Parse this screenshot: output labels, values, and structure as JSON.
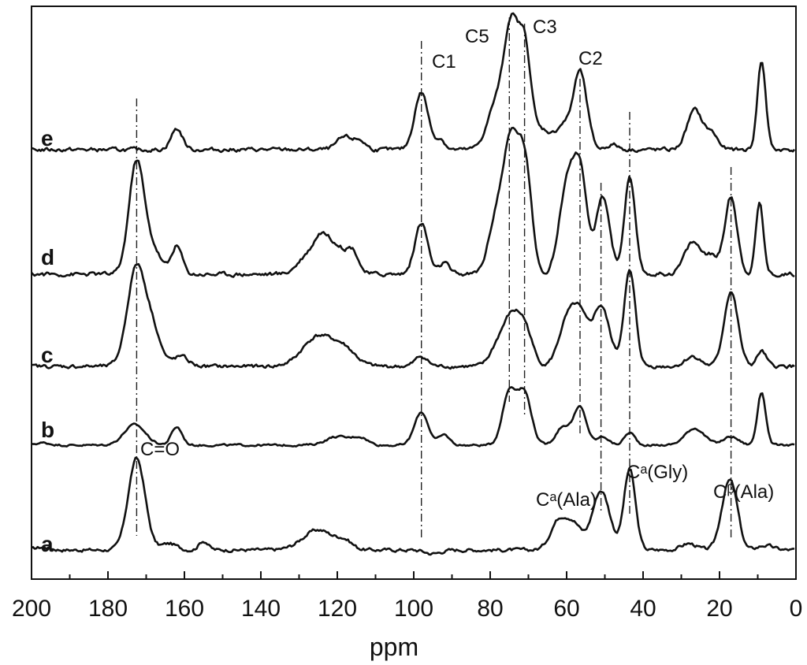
{
  "chart_data": {
    "type": "line",
    "title": "",
    "xlabel": "ppm",
    "ylabel": "",
    "xlim": [
      200,
      0
    ],
    "x_reversed": true,
    "xticks": [
      200,
      180,
      160,
      140,
      120,
      100,
      80,
      60,
      40,
      20,
      0
    ],
    "grid": false,
    "baseline_shape": "smooth",
    "series": [
      {
        "name": "a",
        "peaks": [
          [
            197,
            0.03,
            2
          ],
          [
            172.5,
            1.0,
            2.2
          ],
          [
            164,
            0.07,
            2
          ],
          [
            155,
            0.1,
            1.2
          ],
          [
            125,
            0.22,
            4
          ],
          [
            118,
            0.08,
            2
          ],
          [
            95,
            -0.04,
            2
          ],
          [
            62,
            0.32,
            2.2
          ],
          [
            58,
            0.25,
            2
          ],
          [
            51,
            0.65,
            2.3
          ],
          [
            43.5,
            0.88,
            1.5
          ],
          [
            28,
            0.07,
            2
          ],
          [
            18,
            0.6,
            1.8
          ],
          [
            16,
            0.3,
            1.5
          ],
          [
            8,
            0.05,
            2
          ]
        ]
      },
      {
        "name": "b",
        "peaks": [
          [
            197,
            0.04,
            2
          ],
          [
            173,
            0.36,
            2.8
          ],
          [
            162,
            0.32,
            1.4
          ],
          [
            120,
            0.15,
            3
          ],
          [
            114,
            0.13,
            2
          ],
          [
            98,
            0.58,
            1.8
          ],
          [
            92,
            0.18,
            1.4
          ],
          [
            75,
            0.93,
            1.8
          ],
          [
            71,
            0.9,
            1.8
          ],
          [
            61,
            0.32,
            1.8
          ],
          [
            56.5,
            0.66,
            1.7
          ],
          [
            50.5,
            0.15,
            1.5
          ],
          [
            43.5,
            0.22,
            1.4
          ],
          [
            26.5,
            0.3,
            2.5
          ],
          [
            17,
            0.15,
            2
          ],
          [
            9,
            0.93,
            1.1
          ]
        ]
      },
      {
        "name": "c",
        "peaks": [
          [
            172.5,
            1.0,
            2.4
          ],
          [
            168,
            0.3,
            2
          ],
          [
            161,
            0.1,
            2
          ],
          [
            125,
            0.3,
            4
          ],
          [
            118,
            0.15,
            3
          ],
          [
            98,
            0.1,
            1.6
          ],
          [
            78,
            0.2,
            2
          ],
          [
            74.5,
            0.42,
            2
          ],
          [
            71,
            0.38,
            2
          ],
          [
            60,
            0.42,
            2.2
          ],
          [
            56.5,
            0.45,
            2
          ],
          [
            51,
            0.6,
            2.2
          ],
          [
            43.5,
            0.95,
            1.5
          ],
          [
            27,
            0.1,
            2
          ],
          [
            17,
            0.75,
            1.8
          ],
          [
            9,
            0.15,
            1.2
          ]
        ]
      },
      {
        "name": "d",
        "peaks": [
          [
            172.5,
            1.0,
            2.0
          ],
          [
            168,
            0.2,
            2
          ],
          [
            162,
            0.25,
            1.4
          ],
          [
            128,
            0.15,
            2.5
          ],
          [
            124,
            0.3,
            2
          ],
          [
            120,
            0.22,
            2
          ],
          [
            116,
            0.2,
            1.6
          ],
          [
            98,
            0.45,
            1.7
          ],
          [
            92,
            0.1,
            1.2
          ],
          [
            78,
            0.55,
            2.2
          ],
          [
            74.5,
            0.97,
            1.8
          ],
          [
            71,
            0.98,
            1.8
          ],
          [
            60,
            0.75,
            2
          ],
          [
            56.5,
            0.85,
            1.8
          ],
          [
            50.5,
            0.68,
            1.8
          ],
          [
            43.5,
            0.85,
            1.4
          ],
          [
            27,
            0.28,
            2.2
          ],
          [
            22,
            0.15,
            1.8
          ],
          [
            17,
            0.68,
            1.6
          ],
          [
            9.5,
            0.63,
            1.0
          ]
        ]
      },
      {
        "name": "e",
        "peaks": [
          [
            162,
            0.2,
            1.5
          ],
          [
            118,
            0.12,
            2
          ],
          [
            114,
            0.08,
            1.5
          ],
          [
            98,
            0.55,
            1.8
          ],
          [
            93,
            0.1,
            1.2
          ],
          [
            78,
            0.48,
            2.5
          ],
          [
            74.5,
            1.0,
            1.7
          ],
          [
            71,
            1.0,
            1.7
          ],
          [
            66,
            0.18,
            2
          ],
          [
            61,
            0.22,
            1.8
          ],
          [
            56.5,
            0.75,
            1.8
          ],
          [
            48,
            0.05,
            1.5
          ],
          [
            26.5,
            0.38,
            2
          ],
          [
            22,
            0.15,
            1.6
          ],
          [
            9,
            0.85,
            1.1
          ]
        ]
      }
    ],
    "reference_lines_ppm": [
      172.5,
      98,
      75,
      71,
      56.5,
      51,
      43.5,
      17
    ],
    "annotations": [
      {
        "text": "C1",
        "x": 98
      },
      {
        "text": "C5",
        "x": 75
      },
      {
        "text": "C3",
        "x": 71
      },
      {
        "text": "C2",
        "x": 56.5
      },
      {
        "text": "C=O",
        "x": 172.5
      },
      {
        "text": "Cᵃ(Ala)",
        "x": 51
      },
      {
        "text": "Cᵃ(Gly)",
        "x": 43.5
      },
      {
        "text": "Cᵝ(Ala)",
        "x": 17
      }
    ]
  }
}
